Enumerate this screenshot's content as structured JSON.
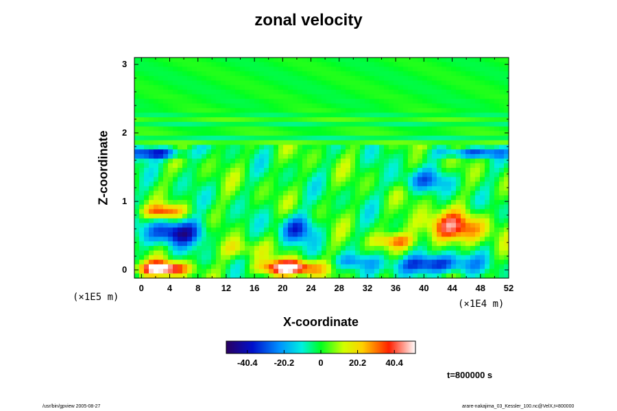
{
  "chart_data": {
    "type": "heatmap",
    "title": "zonal velocity",
    "xlabel": "X-coordinate",
    "ylabel": "Z-coordinate",
    "x_unit": "(×1E4 m)",
    "y_unit": "(×1E5 m)",
    "xlim": [
      -1,
      52
    ],
    "ylim": [
      -0.12,
      3.1
    ],
    "x_ticks": [
      "0",
      "4",
      "8",
      "12",
      "16",
      "20",
      "24",
      "28",
      "32",
      "36",
      "40",
      "44",
      "48",
      "52"
    ],
    "y_ticks": [
      "0",
      "1",
      "2",
      "3"
    ],
    "colorbar": {
      "range": [
        -52,
        52
      ],
      "tick_values": [
        -40.4,
        -20.2,
        0,
        20.2,
        40.4
      ],
      "tick_labels": [
        "-40.4",
        "-20.2",
        "0",
        "20.2",
        "40.4"
      ]
    },
    "features": [
      {
        "x": 3.0,
        "z": 0.02,
        "value": 55,
        "sx": 3.5,
        "sz": 0.1
      },
      {
        "x": 21.0,
        "z": 0.03,
        "value": 55,
        "sx": 4.0,
        "sz": 0.11
      },
      {
        "x": 3.0,
        "z": 0.85,
        "value": 32,
        "sx": 3.0,
        "sz": 0.1
      },
      {
        "x": 5.0,
        "z": 0.55,
        "value": -42,
        "sx": 4.0,
        "sz": 0.18
      },
      {
        "x": 41.0,
        "z": 0.08,
        "value": -38,
        "sx": 6.0,
        "sz": 0.14
      },
      {
        "x": 44.0,
        "z": 0.62,
        "value": 36,
        "sx": 5.0,
        "sz": 0.22
      },
      {
        "x": 22.0,
        "z": 0.6,
        "value": -30,
        "sx": 2.5,
        "sz": 0.2
      },
      {
        "x": 36.0,
        "z": 0.42,
        "value": 24,
        "sx": 3.0,
        "sz": 0.1
      },
      {
        "x": 2.0,
        "z": 1.7,
        "value": -42,
        "sx": 4.0,
        "sz": 0.08
      },
      {
        "x": 47.0,
        "z": 1.7,
        "value": -32,
        "sx": 5.0,
        "sz": 0.06
      },
      {
        "x": 30.0,
        "z": 0.12,
        "value": -15,
        "sx": 3.0,
        "sz": 0.1
      },
      {
        "x": 14.0,
        "z": 0.3,
        "value": 14,
        "sx": 3.0,
        "sz": 0.14
      },
      {
        "x": 40.0,
        "z": 1.3,
        "value": -20,
        "sx": 4.0,
        "sz": 0.15
      }
    ]
  },
  "annotations": {
    "time": "t=800000 s",
    "footer_left": "/usr/bin/gpview 2005-08-27",
    "footer_right": "arare-nakajima_03_Kessler_100.nc@VelX,t=800000"
  }
}
